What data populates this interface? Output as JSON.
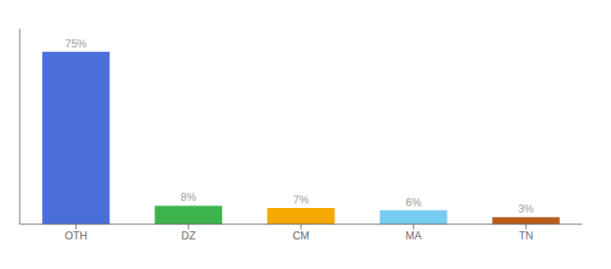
{
  "chart_data": {
    "type": "bar",
    "categories": [
      "OTH",
      "DZ",
      "CM",
      "MA",
      "TN"
    ],
    "values": [
      75,
      8,
      7,
      6,
      3
    ],
    "value_labels": [
      "75%",
      "8%",
      "7%",
      "6%",
      "3%"
    ],
    "colors": [
      "#4a6fdb",
      "#3cb44b",
      "#f5a800",
      "#75ccf0",
      "#b85c1a"
    ],
    "ylim": [
      0,
      85
    ],
    "data_labels": true,
    "tick_labels": "x",
    "grid": false
  }
}
